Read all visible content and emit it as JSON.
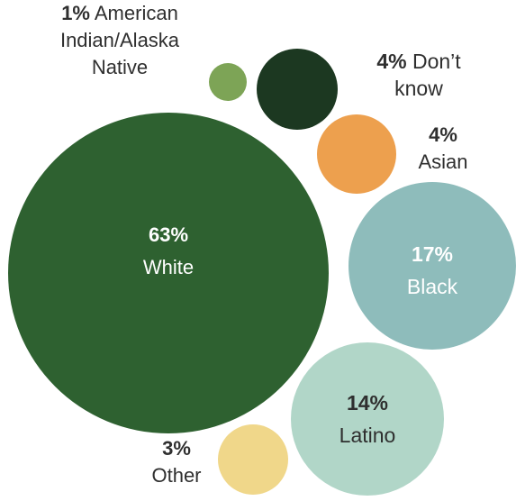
{
  "chart_data": {
    "type": "bubble",
    "title": "",
    "series": [
      {
        "label": "White",
        "value": 63,
        "value_text": "63%",
        "color": "#2e6130",
        "label_color": "#ffffff"
      },
      {
        "label": "Black",
        "value": 17,
        "value_text": "17%",
        "color": "#8ebcbb",
        "label_color": "#ffffff"
      },
      {
        "label": "Latino",
        "value": 14,
        "value_text": "14%",
        "color": "#b1d6c8",
        "label_color": "#2f2f2f"
      },
      {
        "label": "Asian",
        "value": 4,
        "value_text": "4%",
        "color": "#eda04e",
        "label_color": "#2f2f2f"
      },
      {
        "label": "Don’t know",
        "value": 4,
        "value_text": "4%",
        "color": "#1c3821",
        "label_color": "#2f2f2f"
      },
      {
        "label": "Other",
        "value": 3,
        "value_text": "3%",
        "color": "#f0d78a",
        "label_color": "#2f2f2f"
      },
      {
        "label": "American Indian/Alaska Native",
        "value": 1,
        "value_text": "1%",
        "color": "#7da456",
        "label_color": "#2f2f2f"
      }
    ]
  }
}
